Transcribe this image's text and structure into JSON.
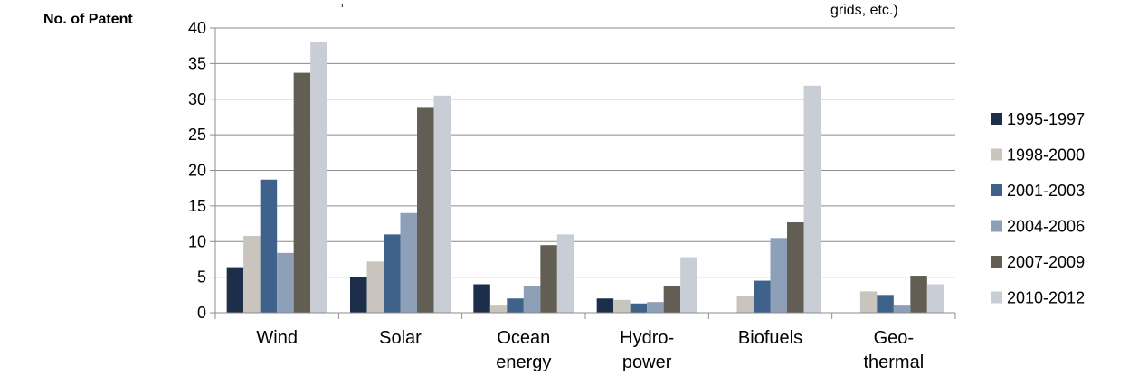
{
  "chart_data": {
    "type": "bar",
    "ylabel": "No. of Patent",
    "top_text_fragments": [
      ",",
      "grids, etc.)"
    ],
    "ylim": [
      0,
      40
    ],
    "y_ticks": [
      0,
      5,
      10,
      15,
      20,
      25,
      30,
      35,
      40
    ],
    "grid": true,
    "legend_position": "right",
    "categories": [
      [
        "Wind"
      ],
      [
        "Solar"
      ],
      [
        "Ocean",
        "energy"
      ],
      [
        "Hydro-",
        "power"
      ],
      [
        "Biofuels"
      ],
      [
        "Geo-",
        "thermal"
      ]
    ],
    "series": [
      {
        "name": "1995-1997",
        "color": "#1c2e4a",
        "values": [
          6.4,
          5.0,
          4.0,
          2.0,
          0.0,
          0.0
        ]
      },
      {
        "name": "1998-2000",
        "color": "#c9c5be",
        "values": [
          10.8,
          7.2,
          1.0,
          1.8,
          2.3,
          3.0
        ]
      },
      {
        "name": "2001-2003",
        "color": "#3f628a",
        "values": [
          18.7,
          11.0,
          2.0,
          1.3,
          4.5,
          2.5
        ]
      },
      {
        "name": "2004-2006",
        "color": "#8ea0b8",
        "values": [
          8.4,
          14.0,
          3.8,
          1.5,
          10.5,
          1.0
        ]
      },
      {
        "name": "2007-2009",
        "color": "#625e53",
        "values": [
          33.7,
          28.9,
          9.5,
          3.8,
          12.7,
          5.2
        ]
      },
      {
        "name": "2010-2012",
        "color": "#c8cdd6",
        "values": [
          38.0,
          30.5,
          11.0,
          7.8,
          31.9,
          4.0
        ]
      }
    ]
  }
}
